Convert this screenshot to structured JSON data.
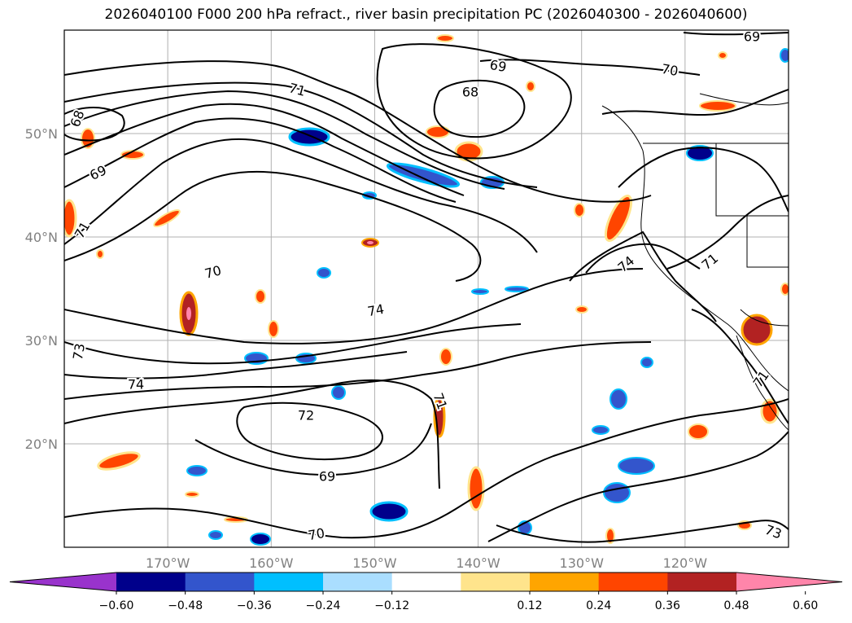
{
  "chart_data": {
    "type": "heatmap",
    "title": "2026040100 F000 200 hPa refract., river basin precipitation PC (2026040300 - 2026040600)",
    "map": {
      "lon_range": [
        -180,
        -110
      ],
      "lat_range": [
        10,
        60
      ],
      "lat_ticks": [
        "50°N",
        "40°N",
        "30°N",
        "20°N"
      ],
      "lat_values": [
        50,
        40,
        30,
        20
      ],
      "lon_ticks": [
        "170°W",
        "160°W",
        "150°W",
        "140°W",
        "130°W",
        "120°W"
      ],
      "lon_values": [
        -170,
        -160,
        -150,
        -140,
        -130,
        -120
      ],
      "grid": true
    },
    "contour_labels": [
      "69",
      "70",
      "69",
      "68",
      "71",
      "68",
      "69",
      "70",
      "74",
      "74",
      "71",
      "73",
      "74",
      "72",
      "69",
      "70",
      "71",
      "71",
      "73",
      "71"
    ],
    "colorbar": {
      "ticks": [
        "−0.60",
        "−0.48",
        "−0.36",
        "−0.24",
        "−0.12",
        "0.12",
        "0.24",
        "0.36",
        "0.48",
        "0.60"
      ],
      "colors": [
        "#9933cc",
        "#00008b",
        "#3355cc",
        "#00bfff",
        "#aadeff",
        "#ffffff",
        "#ffe48c",
        "#ffa500",
        "#ff4500",
        "#b22222",
        "#ff85aa"
      ],
      "extend": "both"
    }
  }
}
